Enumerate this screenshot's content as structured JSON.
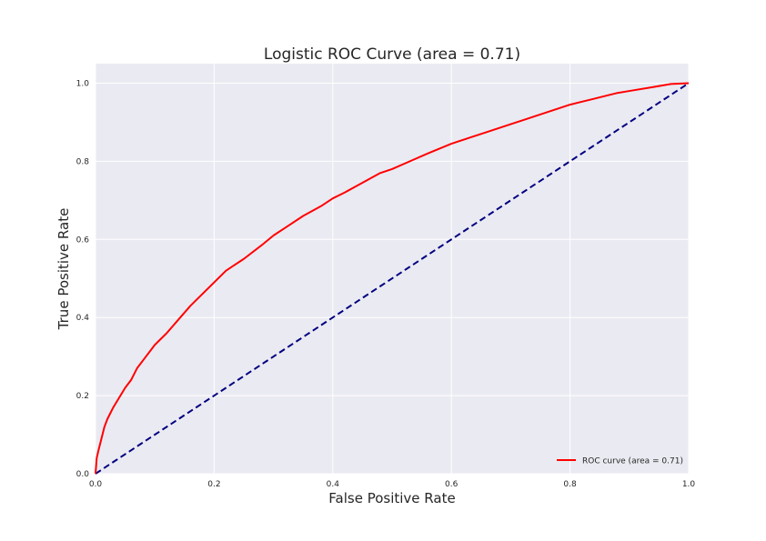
{
  "chart_data": {
    "type": "line",
    "title": "Logistic ROC Curve (area = 0.71)",
    "xlabel": "False Positive Rate",
    "ylabel": "True Positive Rate",
    "xlim": [
      0.0,
      1.0
    ],
    "ylim": [
      0.0,
      1.05
    ],
    "x_ticks": [
      "0.0",
      "0.2",
      "0.4",
      "0.6",
      "0.8",
      "1.0"
    ],
    "y_ticks": [
      "0.0",
      "0.2",
      "0.4",
      "0.6",
      "0.8",
      "1.0"
    ],
    "grid": true,
    "legend_position": "lower-right",
    "background_color": "#eaeaf2",
    "grid_color": "#ffffff",
    "series": [
      {
        "name": "ROC curve (area = 0.71)",
        "color": "#ff0000",
        "style": "solid",
        "x": [
          0.0,
          0.002,
          0.005,
          0.01,
          0.015,
          0.02,
          0.03,
          0.04,
          0.05,
          0.06,
          0.07,
          0.08,
          0.1,
          0.12,
          0.14,
          0.16,
          0.18,
          0.2,
          0.22,
          0.25,
          0.28,
          0.3,
          0.32,
          0.35,
          0.38,
          0.4,
          0.42,
          0.45,
          0.48,
          0.5,
          0.53,
          0.56,
          0.6,
          0.63,
          0.66,
          0.7,
          0.72,
          0.76,
          0.8,
          0.84,
          0.88,
          0.9,
          0.94,
          0.97,
          1.0
        ],
        "y": [
          0.0,
          0.04,
          0.06,
          0.09,
          0.12,
          0.14,
          0.17,
          0.195,
          0.22,
          0.24,
          0.27,
          0.29,
          0.33,
          0.36,
          0.395,
          0.43,
          0.46,
          0.49,
          0.52,
          0.55,
          0.585,
          0.61,
          0.63,
          0.66,
          0.685,
          0.705,
          0.72,
          0.745,
          0.77,
          0.78,
          0.8,
          0.82,
          0.845,
          0.86,
          0.875,
          0.895,
          0.905,
          0.925,
          0.945,
          0.96,
          0.975,
          0.98,
          0.99,
          0.998,
          1.0
        ]
      },
      {
        "color": "#000080",
        "style": "dashed",
        "x": [
          0.0,
          1.0
        ],
        "y": [
          0.0,
          1.0
        ]
      }
    ]
  }
}
